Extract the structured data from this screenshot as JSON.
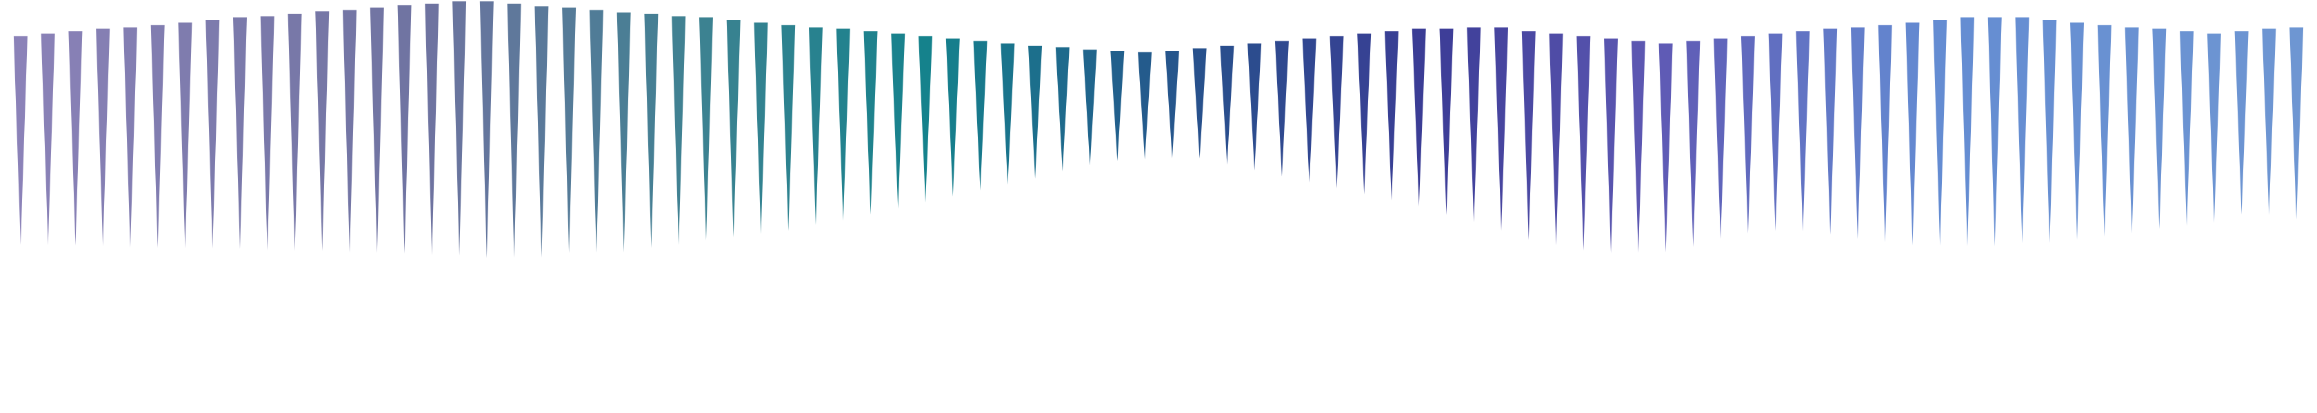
{
  "chart_data": {
    "type": "bar",
    "title": "",
    "xlabel": "",
    "ylabel": "",
    "grid": false,
    "legend": "none",
    "mark_shape": "downward-triangle",
    "count": 84,
    "values": [
      0.74,
      0.75,
      0.76,
      0.77,
      0.78,
      0.79,
      0.8,
      0.81,
      0.82,
      0.83,
      0.84,
      0.85,
      0.86,
      0.87,
      0.88,
      0.89,
      0.9,
      0.91,
      0.9,
      0.89,
      0.87,
      0.86,
      0.85,
      0.83,
      0.81,
      0.79,
      0.77,
      0.75,
      0.73,
      0.7,
      0.68,
      0.65,
      0.62,
      0.59,
      0.56,
      0.53,
      0.5,
      0.47,
      0.44,
      0.41,
      0.39,
      0.38,
      0.38,
      0.39,
      0.42,
      0.45,
      0.48,
      0.51,
      0.54,
      0.57,
      0.6,
      0.63,
      0.66,
      0.69,
      0.72,
      0.74,
      0.75,
      0.76,
      0.76,
      0.75,
      0.74,
      0.73,
      0.71,
      0.7,
      0.7,
      0.71,
      0.73,
      0.75,
      0.77,
      0.79,
      0.8,
      0.81,
      0.81,
      0.8,
      0.79,
      0.77,
      0.75,
      0.73,
      0.71,
      0.69,
      0.67,
      0.65,
      0.66,
      0.68
    ],
    "top_offsets": [
      0.28,
      0.26,
      0.24,
      0.22,
      0.21,
      0.19,
      0.17,
      0.15,
      0.13,
      0.12,
      0.1,
      0.08,
      0.07,
      0.05,
      0.03,
      0.02,
      0.0,
      0.0,
      0.02,
      0.04,
      0.05,
      0.07,
      0.09,
      0.1,
      0.12,
      0.13,
      0.15,
      0.17,
      0.19,
      0.21,
      0.22,
      0.24,
      0.26,
      0.28,
      0.3,
      0.32,
      0.34,
      0.36,
      0.37,
      0.39,
      0.4,
      0.41,
      0.4,
      0.38,
      0.36,
      0.34,
      0.32,
      0.3,
      0.28,
      0.26,
      0.24,
      0.22,
      0.22,
      0.21,
      0.21,
      0.24,
      0.26,
      0.28,
      0.3,
      0.32,
      0.34,
      0.32,
      0.3,
      0.28,
      0.26,
      0.24,
      0.22,
      0.21,
      0.19,
      0.17,
      0.15,
      0.13,
      0.13,
      0.13,
      0.15,
      0.17,
      0.19,
      0.21,
      0.22,
      0.24,
      0.26,
      0.24,
      0.22,
      0.21
    ]
  }
}
